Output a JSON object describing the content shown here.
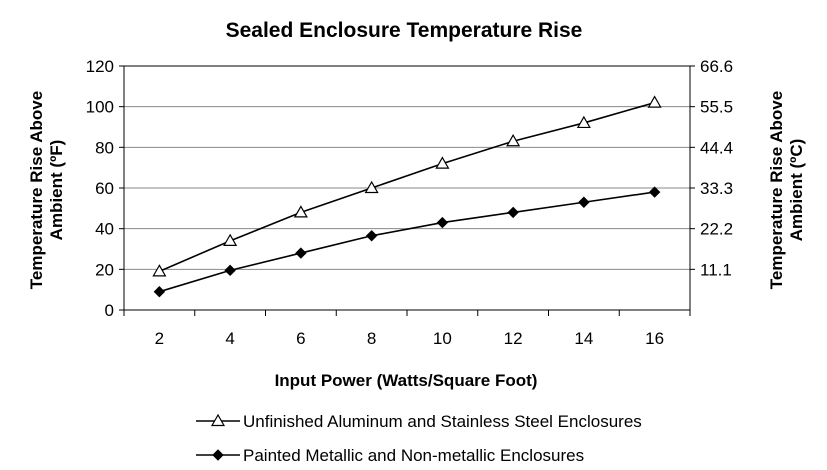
{
  "chart_data": {
    "type": "line",
    "title": "Sealed Enclosure Temperature Rise",
    "xlabel": "Input Power (Watts/Square Foot)",
    "ylabel_left": [
      "Temperature Rise Above",
      "Ambient (ºF)"
    ],
    "ylabel_right": [
      "Temperature Rise Above",
      "Ambient (ºC)"
    ],
    "x": [
      2,
      4,
      6,
      8,
      10,
      12,
      14,
      16
    ],
    "x_ticks": [
      "2",
      "4",
      "6",
      "8",
      "10",
      "12",
      "14",
      "16"
    ],
    "xlim": [
      1,
      17
    ],
    "ylim": [
      0,
      120
    ],
    "y_ticks_left": [
      0,
      20,
      40,
      60,
      80,
      100,
      120
    ],
    "y_ticks_right": [
      {
        "label": "11.1",
        "value": 20
      },
      {
        "label": "22.2",
        "value": 40
      },
      {
        "label": "33.3",
        "value": 60
      },
      {
        "label": "44.4",
        "value": 80
      },
      {
        "label": "55.5",
        "value": 100
      },
      {
        "label": "66.6",
        "value": 120
      }
    ],
    "grid": "horizontal",
    "legend_position": "bottom",
    "series": [
      {
        "name": "Unfinished Aluminum and Stainless Steel Enclosures",
        "marker": "triangle-open",
        "values": [
          19,
          34,
          48,
          60,
          72,
          83,
          92,
          102
        ]
      },
      {
        "name": "Painted Metallic and Non-metallic Enclosures",
        "marker": "diamond-filled",
        "values": [
          9,
          19.5,
          28,
          36.5,
          43,
          48,
          53,
          58
        ]
      }
    ]
  }
}
